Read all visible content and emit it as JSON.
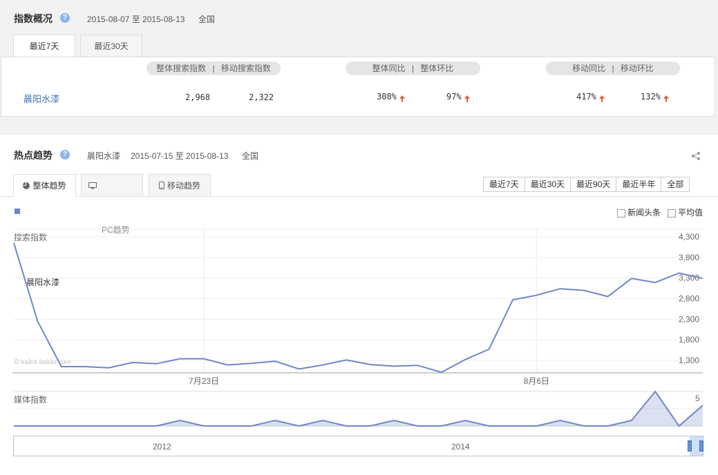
{
  "overview": {
    "title": "指数概况",
    "date_range": "2015-08-07 至 2015-08-13",
    "region": "全国",
    "tabs": [
      "最近7天",
      "最近30天"
    ],
    "pill_overall": "整体搜索指数  |  移动搜索指数",
    "pill_overall_left": "整体搜索指数",
    "pill_overall_right": "移动搜索指数",
    "pill_yoy_left": "整体同比",
    "pill_yoy_right": "整体环比",
    "pill_mobile_left": "移动同比",
    "pill_mobile_right": "移动环比",
    "keyword": "晨阳水漆",
    "overall_search": "2,968",
    "mobile_search": "2,322",
    "overall_yoy": "308%",
    "overall_mom": "97%",
    "mobile_yoy": "417%",
    "mobile_mom": "132%",
    "up_color": "#e0613a"
  },
  "trend": {
    "title": "热点趋势",
    "keyword": "晨阳水漆",
    "date_range": "2015-07-15 至 2015-08-13",
    "region": "全国",
    "tab_overall": "整体趋势",
    "tab_pc_hint": "PC趋势",
    "tab_mobile": "移动趋势",
    "ranges": [
      "最近7天",
      "最近30天",
      "最近90天",
      "最近半年",
      "全部"
    ],
    "news_checkbox": "新闻头条",
    "avg_checkbox": "平均值",
    "watermark": "© index.baidu.com",
    "legend_keyword": "晨阳水漆",
    "search_label": "搜索指数",
    "media_label": "媒体指数",
    "media_max": "5",
    "timeline_labels": [
      "2012",
      "2014"
    ],
    "line_color": "#6f86c9"
  },
  "chart_data": [
    {
      "type": "line",
      "title": "",
      "ylabel": "搜索指数",
      "x_ticks": [
        "7月23日",
        "8月6日"
      ],
      "y_ticks": [
        1300,
        1800,
        2300,
        2800,
        3300,
        3800,
        4300
      ],
      "ylim": [
        1000,
        4300
      ],
      "grid": true,
      "x": [
        "2015-07-15",
        "2015-07-16",
        "2015-07-17",
        "2015-07-18",
        "2015-07-19",
        "2015-07-20",
        "2015-07-21",
        "2015-07-22",
        "2015-07-23",
        "2015-07-24",
        "2015-07-25",
        "2015-07-26",
        "2015-07-27",
        "2015-07-28",
        "2015-07-29",
        "2015-07-30",
        "2015-07-31",
        "2015-08-01",
        "2015-08-02",
        "2015-08-03",
        "2015-08-04",
        "2015-08-05",
        "2015-08-06",
        "2015-08-07",
        "2015-08-08",
        "2015-08-09",
        "2015-08-10",
        "2015-08-11",
        "2015-08-12",
        "2015-08-13"
      ],
      "series": [
        {
          "name": "晨阳水漆",
          "values": [
            4150,
            2250,
            1150,
            1150,
            1120,
            1250,
            1220,
            1340,
            1340,
            1190,
            1230,
            1280,
            1090,
            1190,
            1310,
            1200,
            1160,
            1180,
            1010,
            1320,
            1570,
            2770,
            2880,
            3040,
            3000,
            2850,
            3290,
            3190,
            3420,
            3290
          ]
        }
      ]
    },
    {
      "type": "area",
      "title": "",
      "ylabel": "媒体指数",
      "ylim": [
        0,
        5
      ],
      "x": [
        "2015-07-15",
        "2015-07-16",
        "2015-07-17",
        "2015-07-18",
        "2015-07-19",
        "2015-07-20",
        "2015-07-21",
        "2015-07-22",
        "2015-07-23",
        "2015-07-24",
        "2015-07-25",
        "2015-07-26",
        "2015-07-27",
        "2015-07-28",
        "2015-07-29",
        "2015-07-30",
        "2015-07-31",
        "2015-08-01",
        "2015-08-02",
        "2015-08-03",
        "2015-08-04",
        "2015-08-05",
        "2015-08-06",
        "2015-08-07",
        "2015-08-08",
        "2015-08-09",
        "2015-08-10",
        "2015-08-11",
        "2015-08-12",
        "2015-08-13"
      ],
      "series": [
        {
          "name": "晨阳水漆",
          "values": [
            0,
            0,
            0,
            0,
            0,
            0,
            0,
            1,
            0,
            0,
            0,
            1,
            0,
            1,
            0,
            0,
            1,
            0,
            0,
            1,
            0,
            0,
            0,
            1,
            0,
            0,
            1,
            5,
            0,
            3
          ]
        }
      ]
    }
  ]
}
